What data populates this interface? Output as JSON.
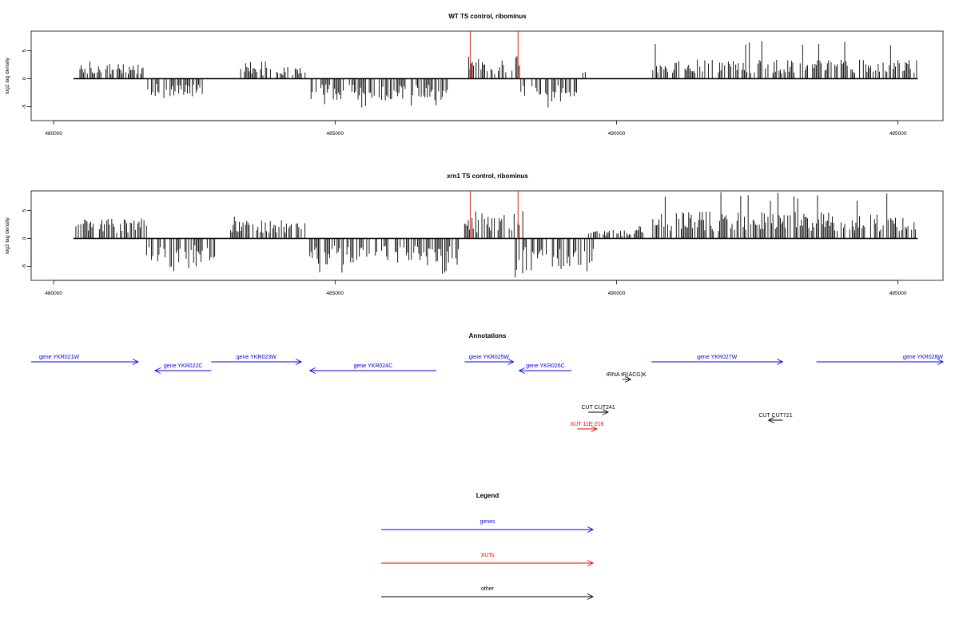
{
  "chart_data": [
    {
      "type": "bar",
      "title": "WT TS control, ribominus",
      "ylabel": "log2 tag density",
      "xlim": [
        479600,
        495800
      ],
      "ylim": [
        -7.5,
        8.5
      ],
      "x_ticks": [
        480000,
        485000,
        490000,
        495000
      ],
      "x_tick_labels": [
        "480000",
        "485000",
        "490000",
        "495000"
      ],
      "y_ticks": [
        -5,
        0,
        5
      ],
      "y_tick_labels": [
        "-5",
        "0",
        "5"
      ],
      "grid": false,
      "marker_lines": [
        487400,
        488250
      ],
      "marker_color": "#dd2222",
      "bar_color": "#000000",
      "plus_regions": [
        {
          "start": 480400,
          "end": 481600,
          "mean": 1.8,
          "max": 3.4
        },
        {
          "start": 483300,
          "end": 484500,
          "mean": 1.4,
          "max": 3.1
        },
        {
          "start": 487350,
          "end": 488300,
          "mean": 2.0,
          "max": 4.0
        },
        {
          "start": 489400,
          "end": 489600,
          "mean": 1.6,
          "max": 3.2
        },
        {
          "start": 490600,
          "end": 495350,
          "mean": 2.3,
          "max": 6.8
        }
      ],
      "minus_regions": [
        {
          "start": 481650,
          "end": 482700,
          "mean": 2.2,
          "max": 4.2
        },
        {
          "start": 484550,
          "end": 487000,
          "mean": 2.6,
          "max": 5.2
        },
        {
          "start": 488300,
          "end": 489350,
          "mean": 2.8,
          "max": 5.4
        }
      ]
    },
    {
      "type": "bar",
      "title": "xrn1 TS control, ribominus",
      "ylabel": "log2 tag density",
      "xlim": [
        479600,
        495800
      ],
      "ylim": [
        -7.5,
        8.5
      ],
      "x_ticks": [
        480000,
        485000,
        490000,
        495000
      ],
      "x_tick_labels": [
        "480000",
        "485000",
        "490000",
        "495000"
      ],
      "y_ticks": [
        -5,
        0,
        5
      ],
      "y_tick_labels": [
        "-5",
        "0",
        "5"
      ],
      "grid": false,
      "marker_lines": [
        487400,
        488250
      ],
      "marker_color": "#dd2222",
      "bar_color": "#000000",
      "plus_regions": [
        {
          "start": 480350,
          "end": 481650,
          "mean": 2.4,
          "max": 3.8
        },
        {
          "start": 483100,
          "end": 484500,
          "mean": 2.2,
          "max": 4.0
        },
        {
          "start": 487300,
          "end": 488350,
          "mean": 2.6,
          "max": 5.2
        },
        {
          "start": 489500,
          "end": 490500,
          "mean": 1.0,
          "max": 2.4
        },
        {
          "start": 490600,
          "end": 495350,
          "mean": 3.2,
          "max": 8.3
        }
      ],
      "minus_regions": [
        {
          "start": 481650,
          "end": 482900,
          "mean": 3.0,
          "max": 6.0
        },
        {
          "start": 484550,
          "end": 487200,
          "mean": 3.2,
          "max": 6.5
        },
        {
          "start": 488200,
          "end": 489600,
          "mean": 3.8,
          "max": 7.1
        }
      ]
    }
  ],
  "annotations": {
    "title": "Annotations",
    "xlim": [
      479600,
      495800
    ],
    "features": [
      {
        "label": "gene YKR021W",
        "start": 479600,
        "end": 481500,
        "strand": "+",
        "color": "#0000ee",
        "row": 0
      },
      {
        "label": "gene YKR022C",
        "start": 481800,
        "end": 482800,
        "strand": "-",
        "color": "#0000ee",
        "row": 1
      },
      {
        "label": "gene YKR023W",
        "start": 482800,
        "end": 484400,
        "strand": "+",
        "color": "#0000ee",
        "row": 0
      },
      {
        "label": "gene YKR024C",
        "start": 484550,
        "end": 486800,
        "strand": "-",
        "color": "#0000ee",
        "row": 1
      },
      {
        "label": "gene YKR025W",
        "start": 487300,
        "end": 488170,
        "strand": "+",
        "color": "#0000ee",
        "row": 0
      },
      {
        "label": "gene YKR026C",
        "start": 488270,
        "end": 489200,
        "strand": "-",
        "color": "#0000ee",
        "row": 1
      },
      {
        "label": "tRNA tR(ACG)K",
        "start": 490100,
        "end": 490250,
        "strand": "+",
        "color": "#000000",
        "row": 2
      },
      {
        "label": "gene YKR027W",
        "start": 490620,
        "end": 492950,
        "strand": "+",
        "color": "#0000ee",
        "row": 0
      },
      {
        "label": "gene YKR028W",
        "start": 493550,
        "end": 495800,
        "strand": "+",
        "color": "#0000ee",
        "row": 0
      },
      {
        "label": "CUT CUT241",
        "start": 489500,
        "end": 489850,
        "strand": "+",
        "color": "#000000",
        "row": 3
      },
      {
        "label": "XUT 11E-216",
        "start": 489300,
        "end": 489650,
        "strand": "+",
        "color": "#ee0000",
        "row": 4
      },
      {
        "label": "CUT CUT721",
        "start": 492700,
        "end": 492950,
        "strand": "-",
        "color": "#000000",
        "row": 5
      }
    ]
  },
  "legend": {
    "title": "Legend",
    "items": [
      {
        "label": "genes",
        "color": "#0000ee"
      },
      {
        "label": "XUTs",
        "color": "#ee0000"
      },
      {
        "label": "other",
        "color": "#000000"
      }
    ]
  }
}
